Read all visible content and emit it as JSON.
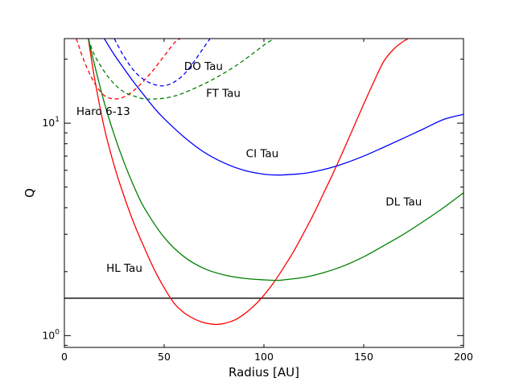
{
  "chart_data": {
    "type": "line",
    "title": "",
    "xlabel": "Radius [AU]",
    "ylabel": "Q",
    "xlim": [
      0,
      200
    ],
    "ylim": [
      0.88,
      25
    ],
    "yscale": "log",
    "grid": false,
    "legend": "none",
    "x_ticks": [
      {
        "value": 0,
        "label": "0"
      },
      {
        "value": 50,
        "label": "50"
      },
      {
        "value": 100,
        "label": "100"
      },
      {
        "value": 150,
        "label": "150"
      },
      {
        "value": 200,
        "label": "200"
      }
    ],
    "y_ticks": [
      {
        "value": 1,
        "label": "10^0",
        "base": "10",
        "exp": "0"
      },
      {
        "value": 10,
        "label": "10^1",
        "base": "10",
        "exp": "1"
      }
    ],
    "hline": {
      "y": 1.5,
      "color": "#000000"
    },
    "series": [
      {
        "name": "HL Tau",
        "color": "#ff0000",
        "dash": false,
        "x": [
          12,
          15,
          20,
          25,
          30,
          35,
          40,
          45,
          50,
          55,
          60,
          65,
          70,
          75,
          77,
          80,
          85,
          90,
          95,
          100,
          105,
          110,
          115,
          120,
          125,
          130,
          135,
          140,
          145,
          150,
          155,
          160,
          165,
          170,
          175
        ],
        "y": [
          25,
          16.5,
          9.5,
          6.3,
          4.5,
          3.35,
          2.6,
          2.05,
          1.68,
          1.42,
          1.28,
          1.2,
          1.15,
          1.13,
          1.13,
          1.14,
          1.18,
          1.26,
          1.38,
          1.55,
          1.78,
          2.1,
          2.5,
          3.05,
          3.75,
          4.7,
          5.9,
          7.5,
          9.6,
          12.3,
          15.6,
          19.5,
          22.3,
          24.3,
          25.8
        ]
      },
      {
        "name": "DL Tau",
        "color": "#008000",
        "dash": false,
        "x": [
          12,
          15,
          20,
          25,
          30,
          35,
          40,
          50,
          60,
          70,
          80,
          90,
          100,
          107,
          110,
          120,
          130,
          140,
          150,
          160,
          170,
          180,
          190,
          200
        ],
        "y": [
          25,
          19,
          12.5,
          8.8,
          6.5,
          5.0,
          4.0,
          2.9,
          2.35,
          2.07,
          1.93,
          1.86,
          1.83,
          1.82,
          1.83,
          1.88,
          1.98,
          2.13,
          2.35,
          2.65,
          3.0,
          3.45,
          4.0,
          4.7
        ]
      },
      {
        "name": "CI Tau",
        "color": "#0000ff",
        "dash": false,
        "x": [
          20,
          25,
          30,
          35,
          40,
          45,
          50,
          60,
          70,
          80,
          90,
          100,
          107,
          110,
          120,
          130,
          140,
          150,
          160,
          170,
          180,
          190,
          200
        ],
        "y": [
          25,
          21,
          18,
          15.5,
          13.5,
          11.8,
          10.5,
          8.6,
          7.3,
          6.5,
          6.0,
          5.75,
          5.7,
          5.71,
          5.8,
          6.05,
          6.45,
          7.0,
          7.7,
          8.5,
          9.4,
          10.4,
          11.0
        ]
      },
      {
        "name": "Haro 6-13",
        "color": "#ff0000",
        "dash": true,
        "x": [
          6,
          10,
          15,
          20,
          25,
          30,
          35,
          40,
          45,
          50,
          55,
          58
        ],
        "y": [
          25,
          19.5,
          15.5,
          13.5,
          13.0,
          13.3,
          14.3,
          15.9,
          18.0,
          20.7,
          23.8,
          25.0
        ]
      },
      {
        "name": "DO Tau",
        "color": "#0000ff",
        "dash": true,
        "x": [
          25,
          30,
          35,
          40,
          45,
          50,
          55,
          60,
          65,
          70,
          73
        ],
        "y": [
          25,
          20.5,
          17.6,
          16.0,
          15.2,
          15.0,
          15.6,
          17.0,
          19.5,
          22.8,
          25.0
        ]
      },
      {
        "name": "FT Tau",
        "color": "#008000",
        "dash": true,
        "x": [
          12,
          15,
          20,
          25,
          30,
          35,
          40,
          45,
          50,
          55,
          60,
          70,
          80,
          90,
          100,
          105
        ],
        "y": [
          25,
          21,
          17.5,
          15.3,
          14.0,
          13.4,
          13.0,
          13.0,
          13.1,
          13.4,
          13.9,
          15.3,
          17.2,
          19.8,
          23.3,
          25.0
        ]
      }
    ],
    "annotations": [
      {
        "text": "DO Tau",
        "x": 60,
        "y": 17.8
      },
      {
        "text": "FT Tau",
        "x": 71,
        "y": 13.3
      },
      {
        "text": "Haro 6-13",
        "x": 6,
        "y": 10.9
      },
      {
        "text": "CI Tau",
        "x": 91,
        "y": 6.9
      },
      {
        "text": "DL Tau",
        "x": 161,
        "y": 4.1
      },
      {
        "text": "HL Tau",
        "x": 21,
        "y": 2.0
      }
    ]
  }
}
